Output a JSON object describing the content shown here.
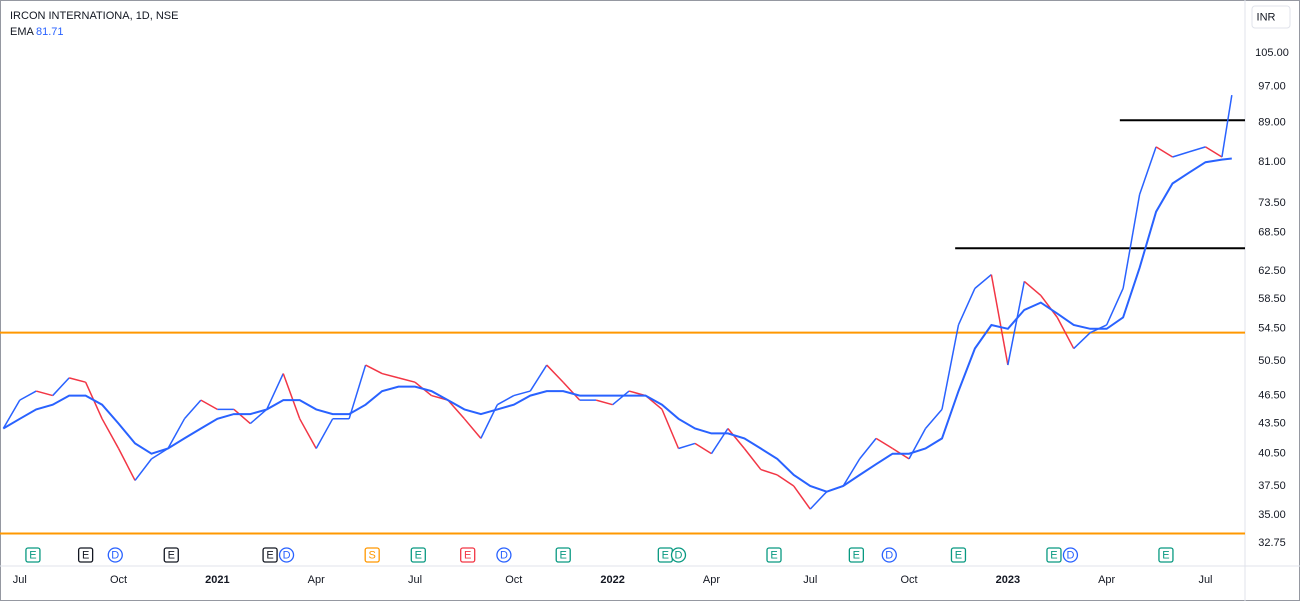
{
  "chart_data": {
    "type": "line",
    "title": "IRCON INTERNATIONA, 1D, NSE",
    "currency": "INR",
    "log_scale": true,
    "grid": false,
    "up_color": "#2962ff",
    "down_color": "#f23645",
    "x": [
      5.5,
      6,
      6.5,
      7,
      7.5,
      8,
      8.5,
      9,
      9.5,
      10,
      10.5,
      11,
      11.5,
      12,
      12.5,
      13,
      13.5,
      14,
      14.5,
      15,
      15.5,
      16,
      16.5,
      17,
      17.5,
      18,
      18.5,
      19,
      19.5,
      20,
      20.5,
      21,
      21.5,
      22,
      22.5,
      23,
      23.5,
      24,
      24.5,
      25,
      25.5,
      26,
      26.5,
      27,
      27.5,
      28,
      28.5,
      29,
      29.5,
      30,
      30.5,
      31,
      31.5,
      32,
      32.5,
      33,
      33.5,
      34,
      34.5,
      35,
      35.5,
      36,
      36.5,
      37,
      37.5,
      38,
      38.5,
      39,
      39.5,
      40,
      40.5,
      41,
      41.5,
      42,
      42.5,
      42.8
    ],
    "series": [
      {
        "values": [
          43,
          46,
          47,
          46.5,
          48.5,
          48,
          44,
          41,
          38,
          40,
          41,
          44,
          46,
          45,
          45,
          43.5,
          45,
          49,
          44,
          41,
          44,
          44,
          50,
          49,
          48.5,
          48,
          46.5,
          46,
          44,
          42,
          45.5,
          46.5,
          47,
          50,
          48,
          46,
          46,
          45.5,
          47,
          46.5,
          45,
          41,
          41.5,
          40.5,
          43,
          41,
          39,
          38.5,
          37.5,
          35.5,
          37,
          37.5,
          40,
          42,
          41,
          40,
          43,
          45,
          55,
          60,
          62,
          50,
          61,
          59,
          56,
          52,
          54,
          55,
          60,
          75,
          84,
          82,
          83,
          84,
          82,
          95
        ]
      },
      {
        "name": "EMA",
        "color": "#2962ff",
        "values": [
          43,
          44,
          45,
          45.5,
          46.5,
          46.5,
          45.5,
          43.5,
          41.5,
          40.5,
          41,
          42,
          43,
          44,
          44.5,
          44.5,
          45,
          46,
          46,
          45,
          44.5,
          44.5,
          45.5,
          47,
          47.5,
          47.5,
          47,
          46,
          45,
          44.5,
          45,
          45.5,
          46.5,
          47,
          47,
          46.5,
          46.5,
          46.5,
          46.5,
          46.5,
          45.5,
          44,
          43,
          42.5,
          42.5,
          42,
          41,
          40,
          38.5,
          37.5,
          37,
          37.5,
          38.5,
          39.5,
          40.5,
          40.5,
          41,
          42,
          47,
          52,
          55,
          54.5,
          57,
          58,
          56.5,
          55,
          54.5,
          54.5,
          56,
          63,
          72,
          77,
          79,
          81,
          81.5,
          81.71
        ]
      }
    ],
    "xlim": [
      5.4,
      43.2
    ],
    "xticks": [
      {
        "value": 6,
        "label": "Jul"
      },
      {
        "value": 9,
        "label": "Oct"
      },
      {
        "value": 12,
        "label": "2021"
      },
      {
        "value": 15,
        "label": "Apr"
      },
      {
        "value": 18,
        "label": "Jul"
      },
      {
        "value": 21,
        "label": "Oct"
      },
      {
        "value": 24,
        "label": "2022"
      },
      {
        "value": 27,
        "label": "Apr"
      },
      {
        "value": 30,
        "label": "Jul"
      },
      {
        "value": 33,
        "label": "Oct"
      },
      {
        "value": 36,
        "label": "2023"
      },
      {
        "value": 39,
        "label": "Apr"
      },
      {
        "value": 42,
        "label": "Jul"
      }
    ],
    "ylim": [
      31.08,
      117.7
    ],
    "yticks": [
      {
        "value": 105,
        "label": "105.00"
      },
      {
        "value": 97,
        "label": "97.00"
      },
      {
        "value": 89,
        "label": "89.00"
      },
      {
        "value": 81,
        "label": "81.00"
      },
      {
        "value": 73.5,
        "label": "73.50"
      },
      {
        "value": 68.5,
        "label": "68.50"
      },
      {
        "value": 62.5,
        "label": "62.50"
      },
      {
        "value": 58.5,
        "label": "58.50"
      },
      {
        "value": 54.5,
        "label": "54.50"
      },
      {
        "value": 50.5,
        "label": "50.50"
      },
      {
        "value": 46.5,
        "label": "46.50"
      },
      {
        "value": 43.5,
        "label": "43.50"
      },
      {
        "value": 40.5,
        "label": "40.50"
      },
      {
        "value": 37.5,
        "label": "37.50"
      },
      {
        "value": 35,
        "label": "35.00"
      },
      {
        "value": 32.75,
        "label": "32.75"
      }
    ],
    "levels": [
      {
        "value": 54,
        "color": "#ff9800"
      },
      {
        "value": 33.5,
        "color": "#ff9800"
      },
      {
        "value": 89.5,
        "color": "#000000",
        "from": 39.4
      },
      {
        "value": 66,
        "color": "#000000",
        "from": 34.4
      }
    ],
    "events": [
      {
        "x": 6.4,
        "label": "E",
        "color": "#089981"
      },
      {
        "x": 8.0,
        "label": "E",
        "color": "#131722"
      },
      {
        "x": 8.9,
        "label": "D",
        "color": "#2962ff"
      },
      {
        "x": 10.6,
        "label": "E",
        "color": "#131722"
      },
      {
        "x": 13.6,
        "label": "E",
        "color": "#131722"
      },
      {
        "x": 14.1,
        "label": "D",
        "color": "#2962ff"
      },
      {
        "x": 16.7,
        "label": "S",
        "color": "#ff9800"
      },
      {
        "x": 18.1,
        "label": "E",
        "color": "#089981"
      },
      {
        "x": 19.6,
        "label": "E",
        "color": "#f23645"
      },
      {
        "x": 20.7,
        "label": "D",
        "color": "#2962ff"
      },
      {
        "x": 22.5,
        "label": "E",
        "color": "#089981"
      },
      {
        "x": 25.6,
        "label": "E",
        "color": "#089981"
      },
      {
        "x": 26.0,
        "label": "D",
        "color": "#089981"
      },
      {
        "x": 28.9,
        "label": "E",
        "color": "#089981"
      },
      {
        "x": 31.4,
        "label": "E",
        "color": "#089981"
      },
      {
        "x": 32.4,
        "label": "D",
        "color": "#2962ff"
      },
      {
        "x": 34.5,
        "label": "E",
        "color": "#089981"
      },
      {
        "x": 37.4,
        "label": "E",
        "color": "#089981"
      },
      {
        "x": 37.9,
        "label": "D",
        "color": "#2962ff"
      },
      {
        "x": 40.8,
        "label": "E",
        "color": "#089981"
      }
    ]
  }
}
